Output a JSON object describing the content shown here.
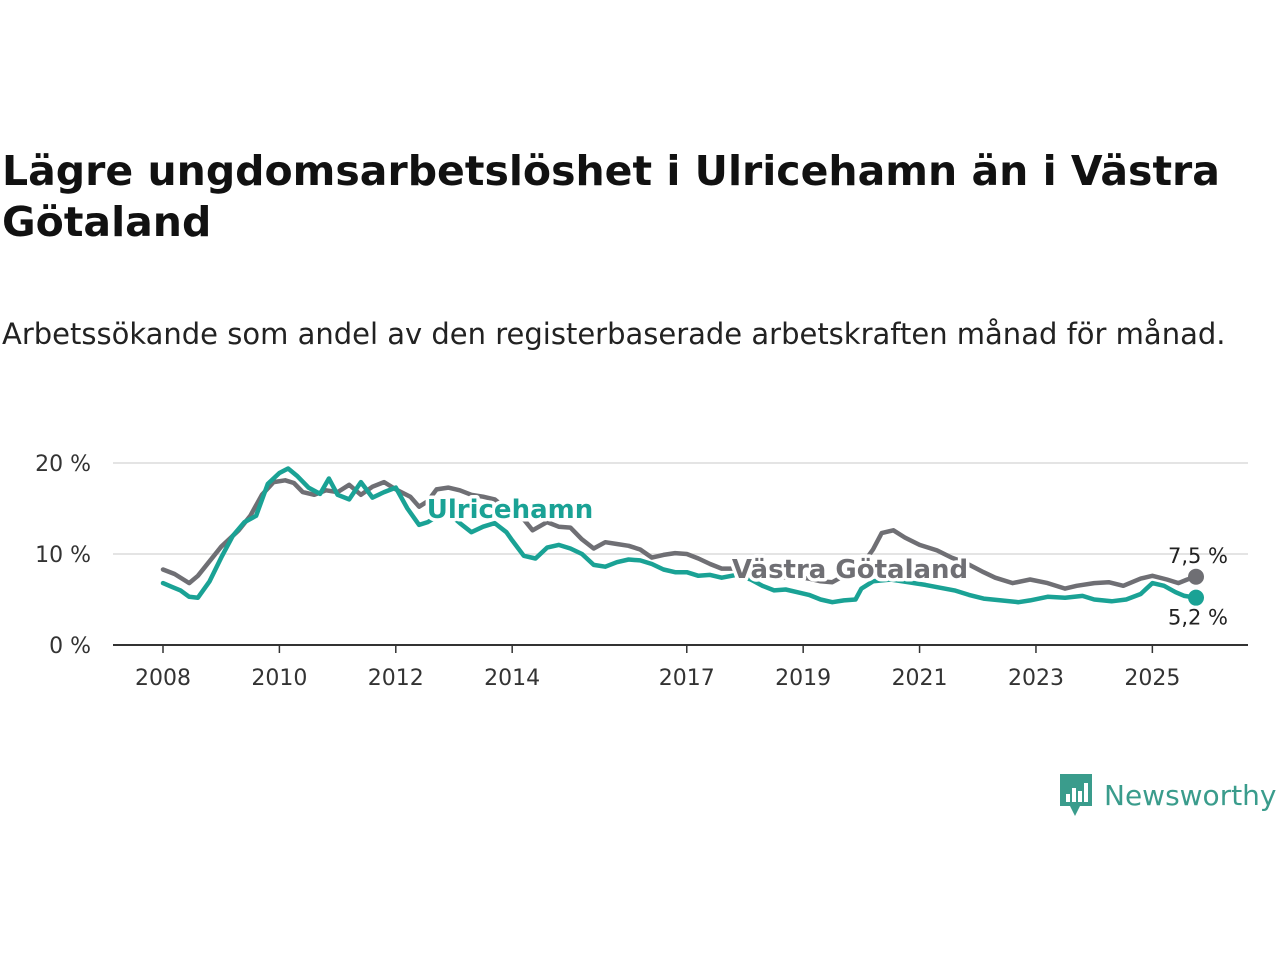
{
  "chart_data": {
    "type": "line",
    "title": "Lägre ungdomsarbetslöshet i Ulricehamn än i Västra Götaland",
    "subtitle": "Arbetssökande som andel av den registerbaserade arbetskraften månad för månad.",
    "xlabel": "",
    "ylabel": "",
    "x_ticks": [
      "2008",
      "2010",
      "2012",
      "2014",
      "2017",
      "2019",
      "2021",
      "2023",
      "2025"
    ],
    "y_ticks": [
      "0 %",
      "10 %",
      "20 %"
    ],
    "ylim": [
      0,
      20
    ],
    "grid": true,
    "series": [
      {
        "name": "Västra Götaland",
        "color": "#6f6f74",
        "end_label": "7,5 %",
        "points": [
          [
            2008.0,
            8.3
          ],
          [
            2008.2,
            7.8
          ],
          [
            2008.45,
            6.8
          ],
          [
            2008.6,
            7.6
          ],
          [
            2009.0,
            10.8
          ],
          [
            2009.3,
            12.6
          ],
          [
            2009.5,
            14.2
          ],
          [
            2009.7,
            16.5
          ],
          [
            2009.9,
            17.9
          ],
          [
            2010.1,
            18.1
          ],
          [
            2010.25,
            17.8
          ],
          [
            2010.4,
            16.8
          ],
          [
            2010.6,
            16.5
          ],
          [
            2010.8,
            17.0
          ],
          [
            2011.0,
            16.8
          ],
          [
            2011.2,
            17.6
          ],
          [
            2011.4,
            16.5
          ],
          [
            2011.6,
            17.4
          ],
          [
            2011.8,
            17.9
          ],
          [
            2012.0,
            17.1
          ],
          [
            2012.25,
            16.3
          ],
          [
            2012.4,
            15.2
          ],
          [
            2012.55,
            15.8
          ],
          [
            2012.7,
            17.1
          ],
          [
            2012.9,
            17.3
          ],
          [
            2013.1,
            17.0
          ],
          [
            2013.3,
            16.5
          ],
          [
            2013.5,
            16.3
          ],
          [
            2013.7,
            16.0
          ],
          [
            2013.85,
            15.2
          ],
          [
            2014.0,
            14.5
          ],
          [
            2014.2,
            13.8
          ],
          [
            2014.35,
            12.6
          ],
          [
            2014.6,
            13.5
          ],
          [
            2014.8,
            13.0
          ],
          [
            2015.0,
            12.9
          ],
          [
            2015.2,
            11.6
          ],
          [
            2015.4,
            10.6
          ],
          [
            2015.6,
            11.3
          ],
          [
            2015.8,
            11.1
          ],
          [
            2016.0,
            10.9
          ],
          [
            2016.2,
            10.5
          ],
          [
            2016.4,
            9.6
          ],
          [
            2016.6,
            9.9
          ],
          [
            2016.8,
            10.1
          ],
          [
            2017.0,
            10.0
          ],
          [
            2017.2,
            9.5
          ],
          [
            2017.4,
            8.9
          ],
          [
            2017.6,
            8.4
          ],
          [
            2017.85,
            8.4
          ],
          [
            2018.1,
            8.0
          ],
          [
            2018.3,
            8.2
          ],
          [
            2018.5,
            8.0
          ],
          [
            2018.7,
            7.4
          ],
          [
            2018.9,
            7.5
          ],
          [
            2019.1,
            7.3
          ],
          [
            2019.3,
            7.0
          ],
          [
            2019.5,
            6.9
          ],
          [
            2019.7,
            7.6
          ],
          [
            2019.9,
            8.5
          ],
          [
            2020.0,
            8.7
          ],
          [
            2020.2,
            10.5
          ],
          [
            2020.35,
            12.3
          ],
          [
            2020.55,
            12.6
          ],
          [
            2020.75,
            11.8
          ],
          [
            2021.0,
            11.0
          ],
          [
            2021.3,
            10.4
          ],
          [
            2021.55,
            9.6
          ],
          [
            2021.8,
            9.0
          ],
          [
            2022.1,
            8.0
          ],
          [
            2022.3,
            7.4
          ],
          [
            2022.6,
            6.8
          ],
          [
            2022.9,
            7.2
          ],
          [
            2023.2,
            6.8
          ],
          [
            2023.5,
            6.2
          ],
          [
            2023.7,
            6.5
          ],
          [
            2024.0,
            6.8
          ],
          [
            2024.25,
            6.9
          ],
          [
            2024.5,
            6.5
          ],
          [
            2024.8,
            7.3
          ],
          [
            2025.0,
            7.6
          ],
          [
            2025.25,
            7.2
          ],
          [
            2025.45,
            6.8
          ],
          [
            2025.6,
            7.2
          ],
          [
            2025.75,
            7.5
          ]
        ]
      },
      {
        "name": "Ulricehamn",
        "color": "#1aa295",
        "end_label": "5,2 %",
        "points": [
          [
            2008.0,
            6.8
          ],
          [
            2008.15,
            6.4
          ],
          [
            2008.3,
            6.0
          ],
          [
            2008.45,
            5.3
          ],
          [
            2008.6,
            5.2
          ],
          [
            2008.8,
            7.0
          ],
          [
            2009.0,
            9.6
          ],
          [
            2009.2,
            12.0
          ],
          [
            2009.4,
            13.5
          ],
          [
            2009.6,
            14.2
          ],
          [
            2009.8,
            17.7
          ],
          [
            2010.0,
            18.9
          ],
          [
            2010.15,
            19.4
          ],
          [
            2010.3,
            18.6
          ],
          [
            2010.5,
            17.3
          ],
          [
            2010.7,
            16.6
          ],
          [
            2010.85,
            18.3
          ],
          [
            2011.0,
            16.5
          ],
          [
            2011.2,
            16.0
          ],
          [
            2011.4,
            17.9
          ],
          [
            2011.6,
            16.2
          ],
          [
            2011.8,
            16.8
          ],
          [
            2012.0,
            17.3
          ],
          [
            2012.2,
            15.0
          ],
          [
            2012.4,
            13.2
          ],
          [
            2012.55,
            13.5
          ],
          [
            2012.7,
            14.1
          ],
          [
            2012.9,
            14.5
          ],
          [
            2013.1,
            13.4
          ],
          [
            2013.3,
            12.4
          ],
          [
            2013.5,
            13.0
          ],
          [
            2013.7,
            13.4
          ],
          [
            2013.9,
            12.4
          ],
          [
            2014.0,
            11.5
          ],
          [
            2014.2,
            9.8
          ],
          [
            2014.4,
            9.5
          ],
          [
            2014.6,
            10.7
          ],
          [
            2014.8,
            11.0
          ],
          [
            2015.0,
            10.6
          ],
          [
            2015.2,
            10.0
          ],
          [
            2015.4,
            8.8
          ],
          [
            2015.6,
            8.6
          ],
          [
            2015.8,
            9.1
          ],
          [
            2016.0,
            9.4
          ],
          [
            2016.2,
            9.3
          ],
          [
            2016.4,
            8.9
          ],
          [
            2016.6,
            8.3
          ],
          [
            2016.8,
            8.0
          ],
          [
            2017.0,
            8.0
          ],
          [
            2017.2,
            7.6
          ],
          [
            2017.4,
            7.7
          ],
          [
            2017.6,
            7.4
          ],
          [
            2017.85,
            7.7
          ],
          [
            2018.1,
            7.2
          ],
          [
            2018.3,
            6.5
          ],
          [
            2018.5,
            6.0
          ],
          [
            2018.7,
            6.1
          ],
          [
            2018.9,
            5.8
          ],
          [
            2019.1,
            5.5
          ],
          [
            2019.3,
            5.0
          ],
          [
            2019.5,
            4.7
          ],
          [
            2019.7,
            4.9
          ],
          [
            2019.9,
            5.0
          ],
          [
            2020.0,
            6.2
          ],
          [
            2020.2,
            7.0
          ],
          [
            2020.5,
            7.2
          ],
          [
            2020.8,
            6.9
          ],
          [
            2021.1,
            6.6
          ],
          [
            2021.35,
            6.3
          ],
          [
            2021.6,
            6.0
          ],
          [
            2021.85,
            5.5
          ],
          [
            2022.1,
            5.1
          ],
          [
            2022.4,
            4.9
          ],
          [
            2022.7,
            4.7
          ],
          [
            2022.9,
            4.9
          ],
          [
            2023.2,
            5.3
          ],
          [
            2023.5,
            5.2
          ],
          [
            2023.8,
            5.4
          ],
          [
            2024.0,
            5.0
          ],
          [
            2024.3,
            4.8
          ],
          [
            2024.55,
            5.0
          ],
          [
            2024.8,
            5.6
          ],
          [
            2025.0,
            6.8
          ],
          [
            2025.2,
            6.5
          ],
          [
            2025.4,
            5.8
          ],
          [
            2025.55,
            5.4
          ],
          [
            2025.75,
            5.2
          ]
        ]
      }
    ],
    "labels": {
      "ulricehamn": "Ulricehamn",
      "vastra_gotaland": "Västra Götaland"
    }
  },
  "header": {
    "title": "Lägre ungdomsarbetslöshet i Ulricehamn än i Västra Götaland",
    "subtitle": "Arbetssökande som andel av den registerbaserade arbetskraften månad för månad."
  },
  "brand": {
    "name": "Newsworthy",
    "color": "#3a9c8c"
  }
}
